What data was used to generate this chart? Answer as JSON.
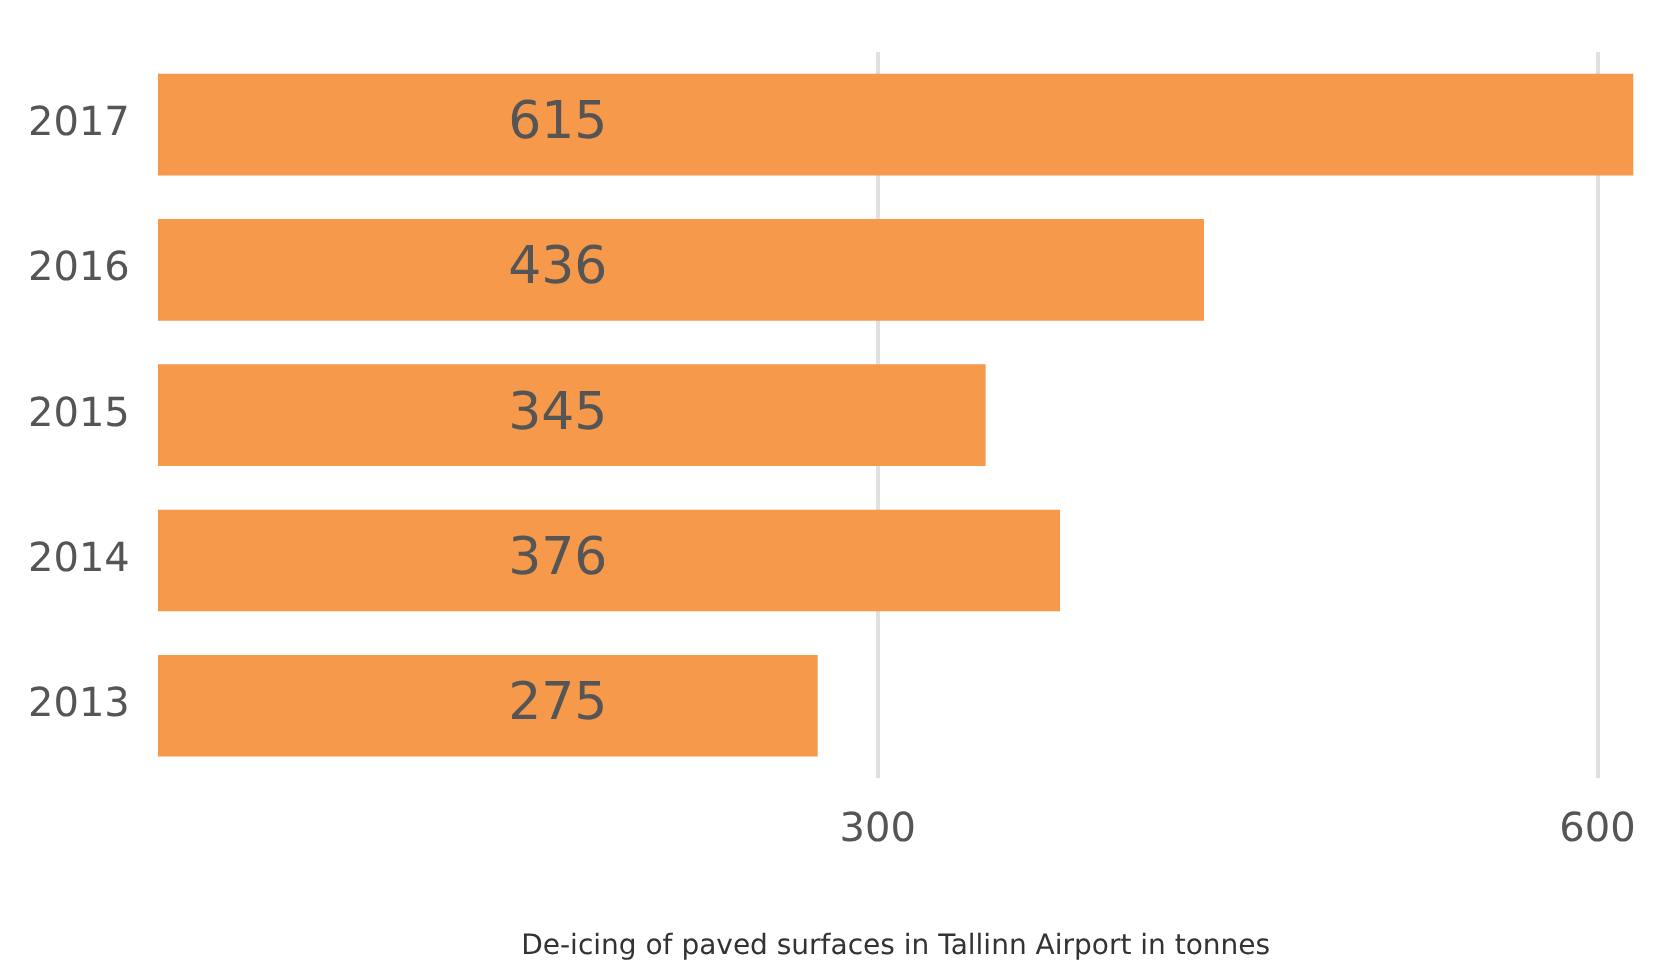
{
  "chart_data": {
    "type": "bar",
    "orientation": "horizontal",
    "xlabel": "De-icing of paved surfaces in Tallinn Airport in tonnes",
    "categories": [
      "2017",
      "2016",
      "2015",
      "2014",
      "2013"
    ],
    "values": [
      615,
      436,
      345,
      376,
      275
    ],
    "color": "#f7994b",
    "xlim": [
      0,
      615
    ],
    "xticks": [
      300,
      600
    ],
    "grid": "x",
    "data_labels": true,
    "legend": false
  }
}
